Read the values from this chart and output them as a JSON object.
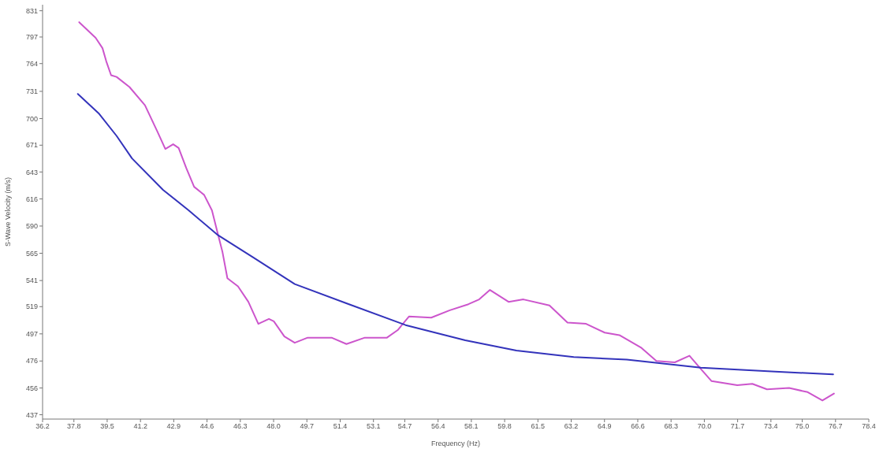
{
  "chart_data": {
    "type": "line",
    "xlabel": "Frequency (Hz)",
    "ylabel": "S-Wave Velocity (m/s)",
    "xlim": [
      36.2,
      78.4
    ],
    "xticks": [
      36.2,
      37.8,
      39.5,
      41.2,
      42.9,
      44.6,
      46.3,
      {
        "value": 48,
        "label": "48.0"
      },
      49.7,
      51.4,
      53.1,
      54.7,
      56.4,
      58.1,
      59.8,
      61.5,
      63.2,
      64.9,
      66.6,
      68.3,
      {
        "value": 70,
        "label": "70.0"
      },
      71.7,
      73.4,
      {
        "value": 75,
        "label": "75.0"
      },
      76.7,
      78.4
    ],
    "ylim": [
      434,
      839
    ],
    "log": "y",
    "yticks": [
      437,
      456,
      476,
      497,
      519,
      541,
      565,
      590,
      616,
      643,
      671,
      700,
      731,
      764,
      797,
      831
    ],
    "series": [
      {
        "color": "#cc55cc",
        "x": [
          38.07,
          38.91,
          39.26,
          39.45,
          39.7,
          39.98,
          40.64,
          41.43,
          42.08,
          42.47,
          42.87,
          43.15,
          43.54,
          43.94,
          44.45,
          44.85,
          45.12,
          45.39,
          45.64,
          46.18,
          46.71,
          47.22,
          47.76,
          48.01,
          48.55,
          49.08,
          49.74,
          50.21,
          50.96,
          51.72,
          52.66,
          53.79,
          54.34,
          54.92,
          56.05,
          57.0,
          57.95,
          58.5,
          59.05,
          60.0,
          60.76,
          62.09,
          63.01,
          63.96,
          64.91,
          65.66,
          66.79,
          67.55,
          68.49,
          69.24,
          69.82,
          70.37,
          71.68,
          72.45,
          73.2,
          74.33,
          75.28,
          76.03,
          76.62
        ],
        "values": [
          816,
          796,
          783,
          767,
          750,
          748,
          736,
          715,
          685,
          667,
          672,
          668,
          647,
          628,
          620,
          605,
          585,
          566,
          543,
          536,
          523,
          505,
          509,
          507,
          495,
          490,
          494,
          494,
          494,
          489,
          494,
          494,
          500,
          511,
          510,
          516,
          521,
          525,
          533,
          523,
          525,
          520,
          506,
          505,
          498,
          496,
          486,
          476,
          475,
          480,
          470,
          461,
          458,
          459,
          455,
          456,
          453,
          447,
          452
        ]
      },
      {
        "color": "#3333bb",
        "x": [
          38.0,
          39.06,
          39.98,
          40.77,
          42.35,
          43.66,
          45.12,
          46.98,
          49.08,
          51.85,
          54.74,
          57.79,
          60.4,
          63.33,
          66.04,
          69.82,
          73.62,
          76.58
        ],
        "values": [
          728,
          706,
          681,
          657,
          625,
          605,
          582,
          561,
          538,
          521,
          504,
          492,
          484,
          479,
          477,
          471,
          468,
          466
        ]
      }
    ]
  }
}
